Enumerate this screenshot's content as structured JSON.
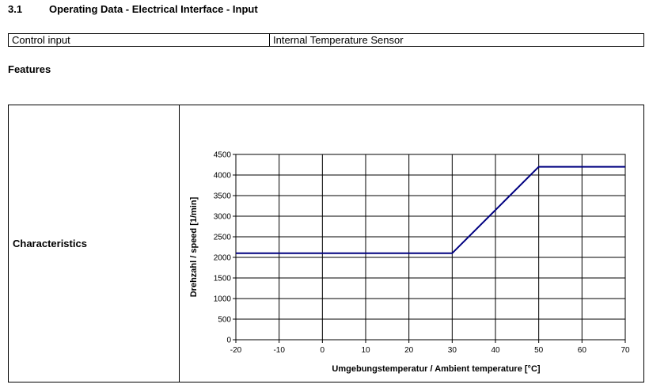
{
  "section": {
    "number": "3.1",
    "title": "Operating Data - Electrical Interface - Input"
  },
  "control_table": {
    "label": "Control input",
    "value": "Internal Temperature Sensor"
  },
  "features_label": "Features",
  "characteristics_label": "Characteristics",
  "colors": {
    "series": "#000080",
    "grid": "#000000"
  },
  "chart_data": {
    "type": "line",
    "title": "",
    "xlabel": "Umgebungstemperatur / Ambient temperature [°C]",
    "ylabel": "Drehzahl / speed [1/min]",
    "xlim": [
      -20,
      70
    ],
    "ylim": [
      0,
      4500
    ],
    "x_ticks": [
      -20,
      -10,
      0,
      10,
      20,
      30,
      40,
      50,
      60,
      70
    ],
    "y_ticks": [
      0,
      500,
      1000,
      1500,
      2000,
      2500,
      3000,
      3500,
      4000,
      4500
    ],
    "grid": true,
    "legend": "none",
    "series": [
      {
        "x": [
          -20,
          30,
          50,
          70
        ],
        "y": [
          2100,
          2100,
          4200,
          4200
        ]
      }
    ]
  }
}
